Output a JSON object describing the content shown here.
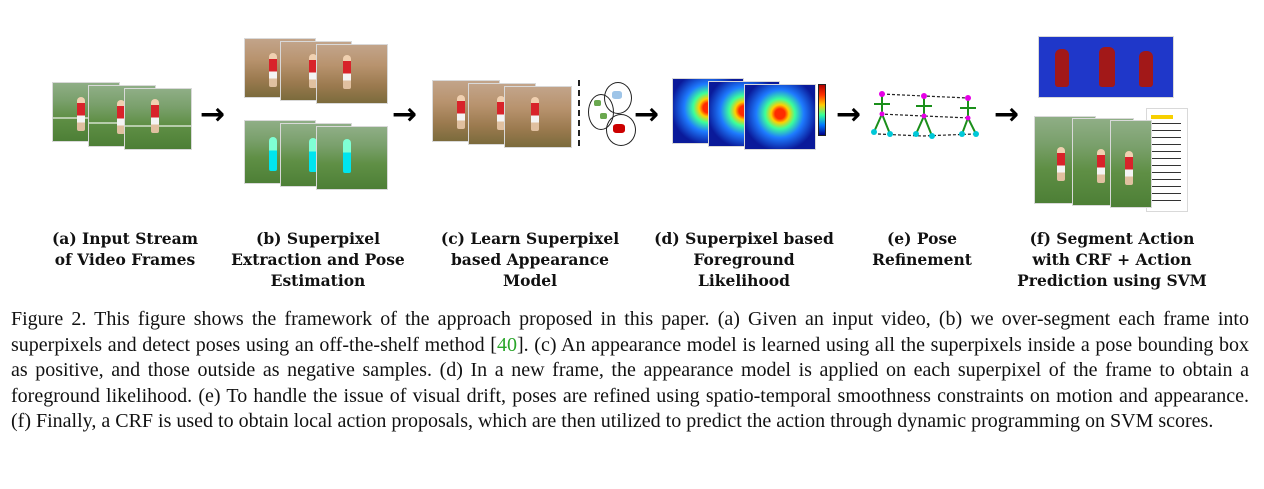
{
  "stages": [
    {
      "id": "a",
      "label": "(a) Input Stream\nof Video Frames"
    },
    {
      "id": "b",
      "label": "(b) Superpixel\nExtraction and Pose\nEstimation"
    },
    {
      "id": "c",
      "label": "(c) Learn Superpixel\nbased Appearance\nModel"
    },
    {
      "id": "d",
      "label": "(d) Superpixel based\nForeground\nLikelihood"
    },
    {
      "id": "e",
      "label": "(e) Pose\nRefinement"
    },
    {
      "id": "f",
      "label": "(f) Segment Action\nwith CRF + Action\nPrediction using SVM"
    }
  ],
  "caption": {
    "before_cite": "Figure 2. This figure shows the framework of the approach proposed in this paper. (a) Given an input video, (b) we over-segment each frame into superpixels and detect poses using an off-the-shelf method [",
    "cite": "40",
    "after_cite": "]. (c) An appearance model is learned using all the superpixels inside a pose bounding box as positive, and those outside as negative samples. (d) In a new frame, the appearance model is applied on each superpixel of the frame to obtain a foreground likelihood. (e) To handle the issue of visual drift, poses are refined using spatio-temporal smoothness constraints on motion and appearance. (f) Finally, a CRF is used to obtain local action proposals, which are then utilized to predict the action through dynamic programming on SVM scores."
  },
  "colors": {
    "arrow": "#000000",
    "cite": "#2aa62a",
    "segment_bg": "#1f37c9",
    "segment_fg": "#a21818"
  },
  "icons": {
    "arrow": "right-arrow-icon",
    "sym": "→"
  }
}
